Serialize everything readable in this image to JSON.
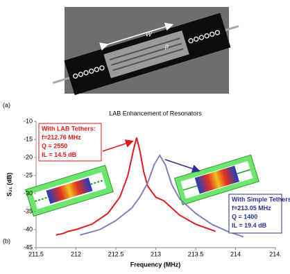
{
  "panel_a": {
    "label": "(a)",
    "width_label": "W",
    "pitch_label": "p"
  },
  "chart_data": {
    "type": "line",
    "panel_label": "(b)",
    "title": "LAB Enhancement of Resonators",
    "x_label": "Frequency (MHz)",
    "y_label": "S₂₁ (dB)",
    "xlim": [
      211.5,
      214.5
    ],
    "xticks": [
      211.5,
      212,
      212.5,
      213,
      213.5,
      214,
      {
        "value": 214.5,
        "label": "214."
      }
    ],
    "ylim": [
      -45,
      -10
    ],
    "yticks": [
      -10,
      -15,
      -20,
      -25,
      -30,
      -35,
      -40,
      -45
    ],
    "grid": false,
    "series": [
      {
        "color": "#e31a1c",
        "x": [
          211.75,
          211.85,
          211.9,
          212.0,
          212.2,
          212.4,
          212.55,
          212.65,
          212.72,
          212.76,
          212.8,
          212.85,
          212.9,
          213.0,
          213.05,
          213.1,
          213.3,
          213.5,
          213.75
        ],
        "values": [
          -41.5,
          -41,
          -40.5,
          -40,
          -38.5,
          -35.5,
          -31,
          -25,
          -18,
          -14.5,
          -18,
          -24,
          -28,
          -31,
          -31.5,
          -32,
          -36,
          -38.5,
          -40.5
        ]
      },
      {
        "color": "#7f7fbf",
        "x": [
          212.05,
          212.3,
          212.5,
          212.7,
          212.8,
          212.9,
          212.98,
          213.05,
          213.12,
          213.2,
          213.3,
          213.5,
          213.7,
          213.9,
          214.1
        ],
        "values": [
          -41.5,
          -40,
          -37.5,
          -34,
          -31,
          -27,
          -22,
          -19.4,
          -22,
          -27.5,
          -31.5,
          -35.5,
          -38.5,
          -40.5,
          -42
        ]
      }
    ],
    "annotations": [
      {
        "color": "#e31a1c",
        "lines": [
          "With LAB Tethers:",
          "f=212.76 MHz",
          "Q = 2550",
          "IL = 14.5 dB"
        ]
      },
      {
        "color": "#2e3192",
        "lines": [
          "With Simple Tethers:",
          "f=213.05 MHz",
          "Q = 1400",
          "IL = 19.4 dB"
        ]
      }
    ]
  }
}
